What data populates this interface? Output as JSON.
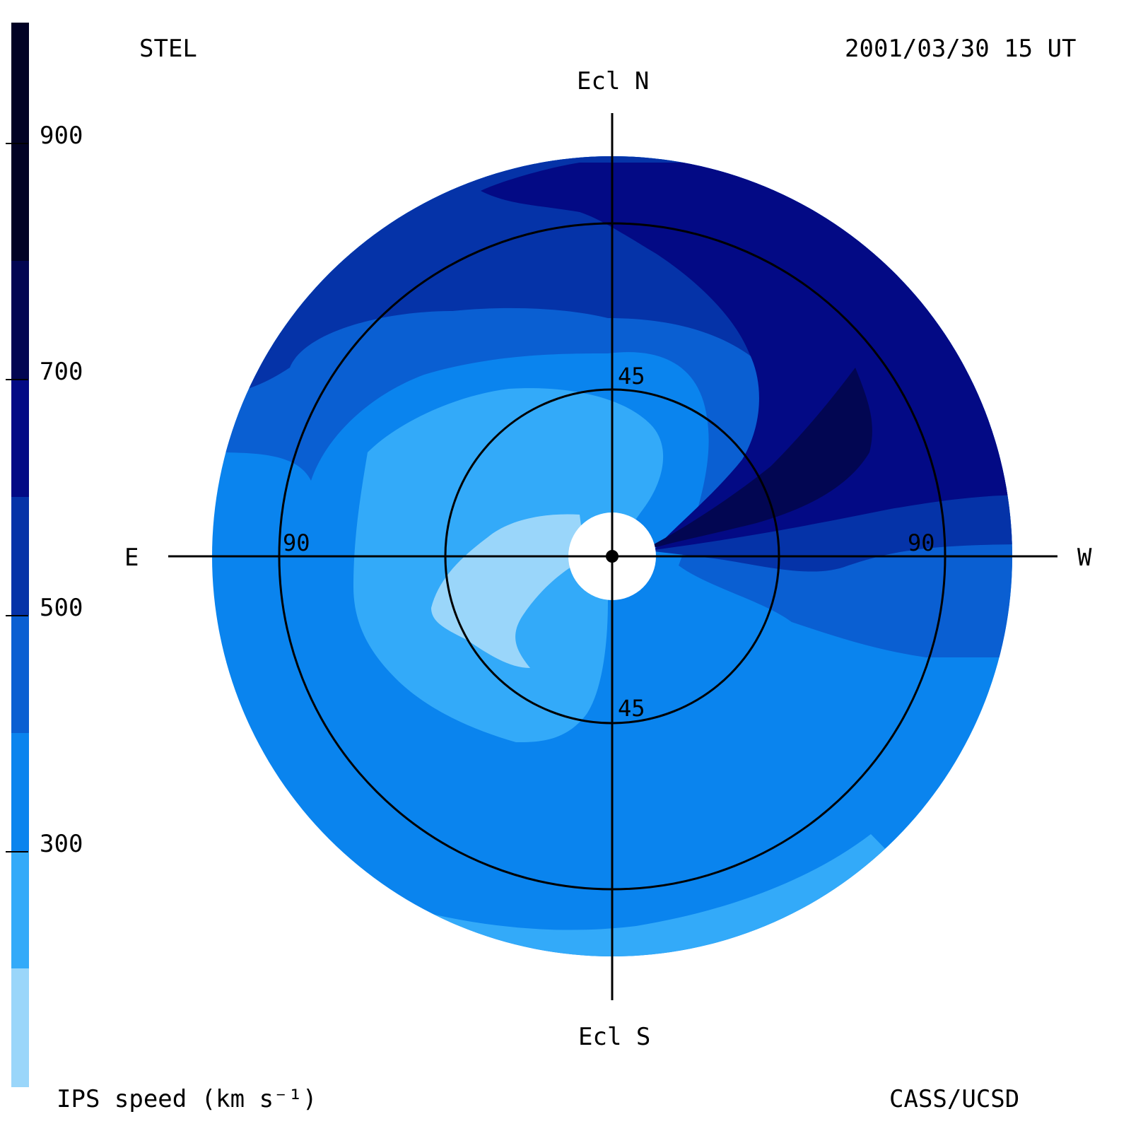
{
  "header": {
    "station": "STEL",
    "timestamp": "2001/03/30 15 UT",
    "credit": "CASS/UCSD"
  },
  "directions": {
    "north": "Ecl N",
    "south": "Ecl S",
    "east": "E",
    "west": "W"
  },
  "rings": {
    "inner_upper": "45",
    "inner_lower": "45",
    "outer_left": "90",
    "outer_right": "90"
  },
  "colorbar": {
    "title": "IPS speed (km s⁻¹)",
    "ticks": [
      "900",
      "700",
      "500",
      "300"
    ],
    "levels": [
      {
        "color": "#9ad6fa"
      },
      {
        "color": "#33aaf9"
      },
      {
        "color": "#0a84ee"
      },
      {
        "color": "#0a5fd2"
      },
      {
        "color": "#0533a8"
      },
      {
        "color": "#030a85"
      },
      {
        "color": "#020652"
      },
      {
        "color": "#010225"
      }
    ]
  },
  "colors": {
    "level_250": "#9ad6fa",
    "level_350": "#33aaf9",
    "level_450": "#0a84ee",
    "level_550": "#0a5fd2",
    "level_650": "#0533a8",
    "level_750": "#030a85",
    "level_850": "#020652"
  }
}
